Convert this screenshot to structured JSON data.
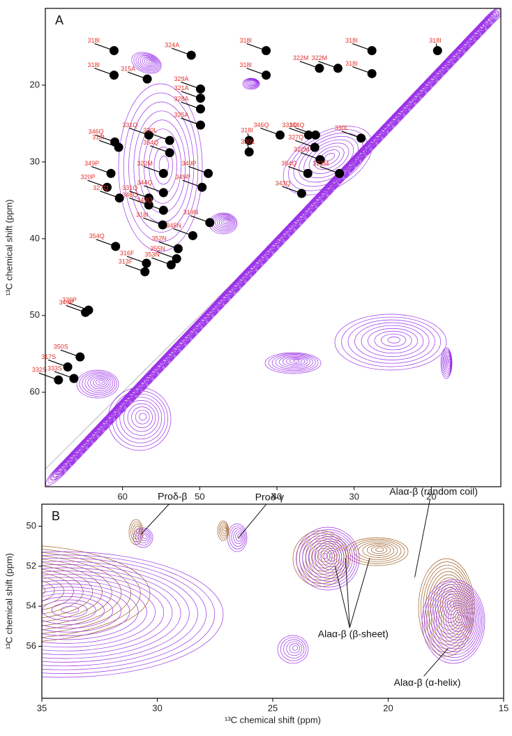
{
  "chart_data": [
    {
      "type": "scatter",
      "panel": "A",
      "ylabel": "¹³C chemical shift (ppm)",
      "xlim": [
        70,
        11
      ],
      "ylim": [
        10,
        72.3
      ],
      "xticks": [
        60,
        50,
        40,
        30,
        20
      ],
      "yticks": [
        20,
        30,
        40,
        50,
        60
      ],
      "diagonal": true,
      "color": "#000000",
      "label_color": "#e0322b",
      "contour_color": "#9b30e8",
      "x": [
        61.1,
        61.1,
        56.8,
        51.1,
        49.9,
        49.9,
        49.9,
        49.9,
        56.6,
        61.0,
        60.5,
        53.9,
        53.9,
        61.5,
        62.0,
        60.4,
        56.6,
        56.6,
        54.7,
        54.7,
        54.7,
        54.8,
        48.9,
        49.7,
        48.7,
        50.9,
        52.8,
        53.0,
        53.7,
        56.9,
        57.1,
        60.9,
        64.4,
        64.8,
        67.1,
        65.5,
        68.3,
        66.3,
        41.4,
        41.4,
        34.5,
        32.1,
        27.7,
        27.7,
        19.2,
        39.6,
        35.9,
        35.0,
        29.1,
        43.6,
        43.6,
        35.1,
        34.4,
        36.0,
        31.9,
        36.8
      ],
      "y": [
        15.5,
        18.7,
        19.2,
        16.1,
        20.5,
        21.7,
        23.1,
        25.2,
        26.5,
        27.4,
        28.1,
        27.2,
        28.8,
        31.5,
        33.3,
        34.7,
        34.7,
        35.6,
        31.5,
        34.0,
        36.3,
        38.2,
        31.5,
        33.3,
        37.9,
        39.6,
        41.3,
        42.6,
        43.4,
        43.2,
        44.3,
        41.0,
        49.3,
        49.6,
        56.7,
        55.4,
        58.4,
        58.2,
        15.5,
        18.7,
        17.8,
        17.8,
        15.5,
        18.5,
        15.5,
        26.5,
        26.5,
        26.5,
        26.9,
        27.2,
        28.7,
        28.1,
        29.7,
        31.5,
        31.5,
        34.1
      ],
      "labels": [
        "318I",
        "318I",
        "315A",
        "324A",
        "329A",
        "321A",
        "328A",
        "325A",
        "331Q",
        "346Q",
        "318I",
        "330L",
        "354Q",
        "349P",
        "320P",
        "327Q",
        "331Q",
        "346Q",
        "322M",
        "344Q",
        "343Q",
        "318I",
        "349P",
        "349P",
        "319N",
        "345N",
        "352N",
        "355N",
        "353N",
        "316F",
        "313F",
        "354Q",
        "320P",
        "349P",
        "317S",
        "350S",
        "332S",
        "333S",
        "318I",
        "318I",
        "322M",
        "322M",
        "318I",
        "318I",
        "318I",
        "346Q",
        "331Q",
        "344Q",
        "330L",
        "318I",
        "330L",
        "327Q",
        "322M",
        "354Q",
        "322M",
        "343Q"
      ]
    },
    {
      "type": "contour",
      "panel": "B",
      "xlabel": "¹³C chemical shift (ppm)",
      "ylabel": "¹³C chemical shift (ppm)",
      "xlim": [
        35,
        15
      ],
      "ylim": [
        48.9,
        58.6
      ],
      "xticks": [
        35,
        30,
        25,
        20,
        15
      ],
      "yticks": [
        50,
        52,
        54,
        56
      ],
      "colors": [
        "#9b30e8",
        "#9c5a1e"
      ],
      "annotations": [
        {
          "text": "Proδ-β",
          "x": [
            30.7
          ],
          "y": [
            50.4
          ]
        },
        {
          "text": "Proδ-γ",
          "x": [
            26.5
          ],
          "y": [
            50.6
          ]
        },
        {
          "text": "Alaα-β (random coil)",
          "x": [
            18.85
          ],
          "y": [
            52.55
          ]
        },
        {
          "text": "Alaα-β (β-sheet)",
          "x": [
            22.3,
            21.85,
            20.8
          ],
          "y": [
            52.0,
            51.6,
            51.6
          ]
        },
        {
          "text": "Alaα-β (α-helix)",
          "x": [
            17.4
          ],
          "y": [
            56.1
          ]
        }
      ]
    }
  ]
}
